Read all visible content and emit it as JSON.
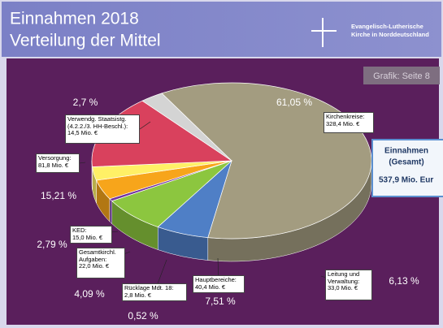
{
  "header": {
    "title_lines": [
      "Einnahmen 2018",
      "Verteilung der Mittel"
    ],
    "organization_lines": [
      "Evangelisch-Lutherische",
      "Kirche in Norddeutschland"
    ]
  },
  "page_reference": "Grafik: Seite 8",
  "total_box": {
    "lines": [
      "Einnahmen",
      "(Gesamt)",
      "537,9 Mio. Eur"
    ]
  },
  "chart_data": {
    "type": "pie",
    "categories": [
      "Kirchenkreise:",
      "Leitung und\nVerwaltung:",
      "Hauptbereiche:",
      "Rücklage Mdt. 18:",
      "Gesamtkirchl.\nAufgaben:",
      "KED:",
      "Versorgung:",
      "Verwendg. Staatsistg.\n(4.2.2./3. HH-Beschl.):"
    ],
    "amounts": [
      "328,4 Mio. €",
      "33,0 Mio. €",
      "40,4 Mio. €",
      "2,8 Mio. €",
      "22,0 Mio. €",
      "15,0 Mio. €",
      "81,8 Mio. €",
      "14,5 Mio. €"
    ],
    "values": [
      61.05,
      6.13,
      7.51,
      0.52,
      4.09,
      2.79,
      15.21,
      2.7
    ],
    "value_labels": [
      "61,05 %",
      "6,13 %",
      "7,51 %",
      "0,52 %",
      "4,09 %",
      "2,79 %",
      "15,21 %",
      "2,7 %"
    ],
    "colors": [
      "#a39c80",
      "#4f7fc6",
      "#8cc63f",
      "#7030a0",
      "#f7a51b",
      "#fff066",
      "#d9415d",
      "#d4d4d4"
    ]
  }
}
